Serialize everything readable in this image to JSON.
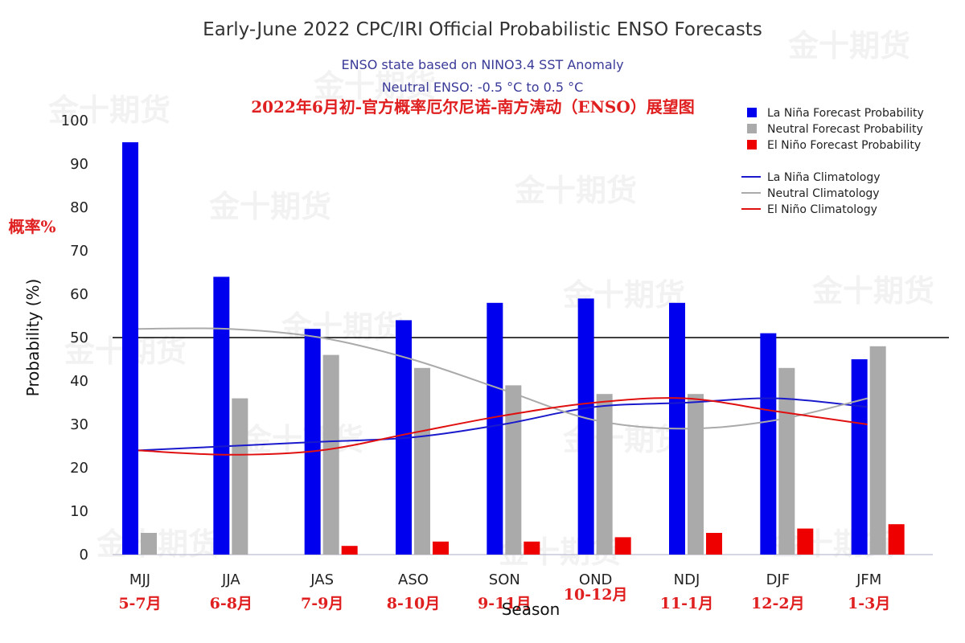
{
  "chart_data": {
    "type": "bar",
    "title": "Early-June 2022 CPC/IRI Official Probabilistic ENSO Forecasts",
    "subtitle_1": "ENSO state based on NINO3.4 SST Anomaly",
    "subtitle_2": "Neutral ENSO: -0.5 °C to 0.5 °C",
    "overlay_title_cn": "2022年6月初-官方概率厄尔尼诺-南方涛动（ENSO）展望图",
    "ylabel": "Probability (%)",
    "ylabel_cn": "概率%",
    "xlabel": "Season",
    "ylim": [
      0,
      100
    ],
    "yticks": [
      0,
      10,
      20,
      30,
      40,
      50,
      60,
      70,
      80,
      90,
      100
    ],
    "reference_line": 50,
    "categories": [
      "MJJ",
      "JJA",
      "JAS",
      "ASO",
      "SON",
      "OND",
      "NDJ",
      "DJF",
      "JFM"
    ],
    "categories_cn": [
      "5-7月",
      "6-8月",
      "7-9月",
      "8-10月",
      "9-11月",
      "10-12月",
      "11-1月",
      "12-2月",
      "1-3月"
    ],
    "series": [
      {
        "name": "La Niña Forecast Probability",
        "color": "#0000ee",
        "values": [
          95,
          64,
          52,
          54,
          58,
          59,
          58,
          51,
          45
        ]
      },
      {
        "name": "Neutral Forecast Probability",
        "color": "#aaaaaa",
        "values": [
          5,
          36,
          46,
          43,
          39,
          37,
          37,
          43,
          48
        ]
      },
      {
        "name": "El Niño Forecast Probability",
        "color": "#ee0000",
        "values": [
          0,
          0,
          2,
          3,
          3,
          4,
          5,
          6,
          7
        ]
      }
    ],
    "lines": [
      {
        "name": "La Niña Climatology",
        "color": "#1a1acc",
        "values": [
          24,
          25,
          26,
          27,
          30,
          34,
          35,
          36,
          34
        ]
      },
      {
        "name": "Neutral Climatology",
        "color": "#aaaaaa",
        "values": [
          52,
          52,
          50,
          45,
          38,
          31,
          29,
          31,
          36
        ]
      },
      {
        "name": "El Niño Climatology",
        "color": "#e01010",
        "values": [
          24,
          23,
          24,
          28,
          32,
          35,
          36,
          33,
          30
        ]
      }
    ],
    "legend_placement": "top-right",
    "grid": false
  },
  "watermark_text": "金十期货"
}
